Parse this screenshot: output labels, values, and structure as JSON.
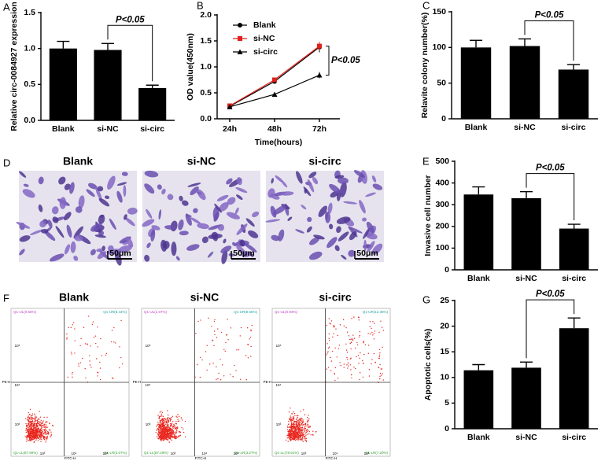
{
  "chart_data": [
    {
      "type": "bar",
      "label": "A",
      "ylabel": "Relative circ-0084927 expression",
      "categories": [
        "Blank",
        "si-NC",
        "si-circ"
      ],
      "values": [
        1.0,
        0.98,
        0.45
      ],
      "errors": [
        0.1,
        0.09,
        0.04
      ],
      "color": "#000000",
      "ylim": [
        0,
        1.5
      ],
      "yticks": [
        {
          "value": 0,
          "label": "0.0"
        },
        {
          "value": 0.5,
          "label": "0.5"
        },
        {
          "value": 1.0,
          "label": "1.0"
        },
        {
          "value": 1.5,
          "label": "1.5"
        }
      ],
      "annotation": "P<0.05"
    },
    {
      "type": "line",
      "label": "B",
      "ylabel": "OD value(450nm)",
      "xlabel": "Time(hours)",
      "categories": [
        "24h",
        "48h",
        "72h"
      ],
      "series": [
        {
          "name": "Blank",
          "color": "#000000",
          "marker": "circle",
          "values": [
            0.24,
            0.72,
            1.38
          ],
          "errors": [
            0.02,
            0.03,
            0.1
          ]
        },
        {
          "name": "si-NC",
          "color": "#e0201b",
          "marker": "square",
          "values": [
            0.25,
            0.75,
            1.4
          ],
          "errors": [
            0.02,
            0.04,
            0.08
          ]
        },
        {
          "name": "si-circ",
          "color": "#000000",
          "marker": "triangle",
          "values": [
            0.23,
            0.47,
            0.84
          ],
          "errors": [
            0.02,
            0.02,
            0.06
          ]
        }
      ],
      "ylim": [
        0,
        2.0
      ],
      "yticks": [
        {
          "value": 0,
          "label": "0.0"
        },
        {
          "value": 0.5,
          "label": "0.5"
        },
        {
          "value": 1.0,
          "label": "1.0"
        },
        {
          "value": 1.5,
          "label": "1.5"
        },
        {
          "value": 2.0,
          "label": "2.0"
        }
      ],
      "annotation": "P<0.05"
    },
    {
      "type": "bar",
      "label": "C",
      "ylabel": "Relavite colony number(%)",
      "categories": [
        "Blank",
        "si-NC",
        "si-circ"
      ],
      "values": [
        100,
        102,
        69
      ],
      "errors": [
        10,
        10,
        7
      ],
      "color": "#000000",
      "ylim": [
        0,
        150
      ],
      "yticks": [
        0,
        50,
        100,
        150
      ],
      "annotation": "P<0.05"
    },
    {
      "type": "bar",
      "label": "E",
      "ylabel": "Invasive cell number",
      "categories": [
        "Blank",
        "si-NC",
        "si-circ"
      ],
      "values": [
        347,
        330,
        190
      ],
      "errors": [
        35,
        30,
        20
      ],
      "color": "#000000",
      "ylim": [
        0,
        500
      ],
      "yticks": [
        0,
        100,
        200,
        300,
        400,
        500
      ],
      "annotation": "P<0.05"
    },
    {
      "type": "bar",
      "label": "G",
      "ylabel": "Apoptotic cells(%)",
      "categories": [
        "Blank",
        "si-NC",
        "si-circ"
      ],
      "values": [
        11.4,
        11.9,
        19.6
      ],
      "errors": [
        1.1,
        1.1,
        2.0
      ],
      "color": "#000000",
      "ylim": [
        0,
        25
      ],
      "yticks": [
        0,
        5,
        10,
        15,
        20,
        25
      ],
      "annotation": "P<0.05"
    }
  ],
  "micrographs": {
    "label": "D",
    "images": [
      {
        "title": "Blank",
        "scale": "50μm"
      },
      {
        "title": "si-NC",
        "scale": "50μm"
      },
      {
        "title": "si-circ",
        "scale": "50μm"
      }
    ]
  },
  "flow_cytometry": {
    "label": "F",
    "plots": [
      {
        "title": "Blank",
        "quadrants": [
          "Q1-UL(0.55%)",
          "Q1-UR(8.44%)",
          "Q1-LL(87.90%)",
          "Q1-LR(3.07%)"
        ],
        "x_label": "FITC-H",
        "y_label": "PE-H",
        "ticks": [
          "10³",
          "10⁴",
          "10⁵"
        ]
      },
      {
        "title": "si-NC",
        "quadrants": [
          "Q1-UL(1.07%)",
          "Q1-UR(8.55%)",
          "Q1-LL(87.29%)",
          "Q1-LR(3.27%)"
        ],
        "x_label": "FITC-H",
        "y_label": "PE-H",
        "ticks": [
          "10³",
          "10⁴",
          "10⁵"
        ]
      },
      {
        "title": "si-circ",
        "quadrants": [
          "Q1-UL(0.93%)",
          "Q1-UR(12.38%)",
          "Q1-LL(78.61%)",
          "Q1-LR(7.20%)"
        ],
        "x_label": "FITC-H",
        "y_label": "PE-H",
        "ticks": [
          "10³",
          "10⁴",
          "10⁵"
        ]
      }
    ]
  }
}
